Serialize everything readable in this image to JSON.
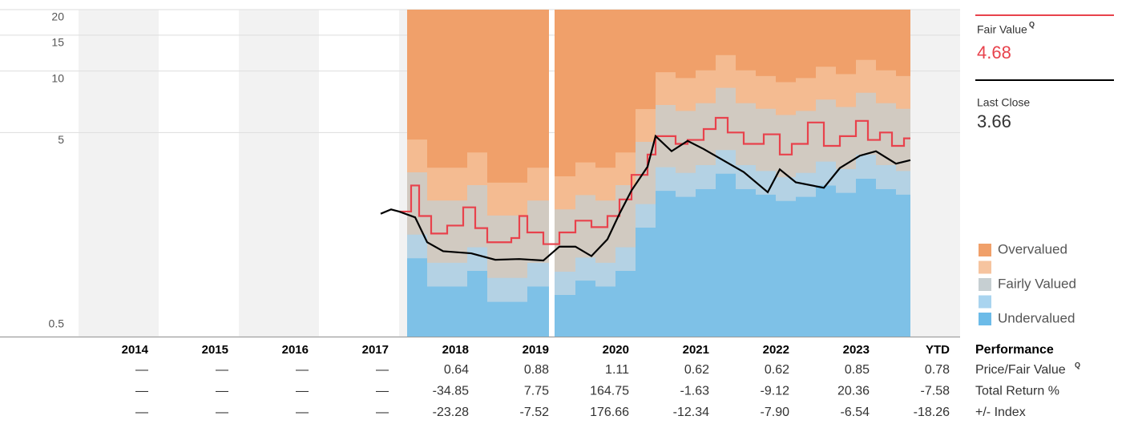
{
  "chart_data": {
    "type": "valuation",
    "scale": "log",
    "ylim": [
      0.5,
      20
    ],
    "yticks": [
      0.5,
      5,
      10,
      15,
      20
    ],
    "xlim": [
      2014,
      2025
    ],
    "bands": {
      "x": [
        2018.1,
        2018.35,
        2018.6,
        2018.85,
        2019.1,
        2019.35,
        2019.6,
        2019.87,
        2019.9,
        2019.94,
        2020.2,
        2020.45,
        2020.7,
        2020.95,
        2021.2,
        2021.45,
        2021.7,
        2021.95,
        2022.2,
        2022.45,
        2022.7,
        2022.95,
        2023.2,
        2023.45,
        2023.7,
        2023.95,
        2024.2,
        2024.38
      ],
      "series": [
        {
          "name": "Undervalued",
          "color": "#6cbbe8",
          "values": [
            1.21,
            0.88,
            0.88,
            1.05,
            0.74,
            0.74,
            0.88,
            0.74,
            null,
            0.8,
            0.94,
            0.88,
            1.05,
            1.71,
            2.59,
            2.42,
            2.64,
            3.14,
            2.64,
            2.48,
            2.31,
            2.42,
            2.75,
            2.53,
            2.97,
            2.64,
            2.48,
            2.57
          ]
        },
        {
          "name": null,
          "color": "#a9d4ef",
          "values": [
            1.58,
            1.15,
            1.15,
            1.37,
            0.97,
            0.97,
            1.15,
            0.97,
            null,
            1.04,
            1.22,
            1.15,
            1.37,
            2.23,
            3.38,
            3.17,
            3.46,
            4.1,
            3.46,
            3.24,
            3.02,
            3.17,
            3.6,
            3.31,
            3.89,
            3.46,
            3.24,
            3.37
          ]
        },
        {
          "name": "Fairly Valued",
          "color": "#c6cfd2",
          "values": [
            3.19,
            2.32,
            2.32,
            2.76,
            1.96,
            1.96,
            2.32,
            1.96,
            null,
            2.1,
            2.47,
            2.32,
            2.76,
            4.5,
            6.82,
            6.38,
            6.96,
            8.27,
            6.96,
            6.53,
            6.09,
            6.38,
            7.25,
            6.67,
            7.83,
            6.96,
            6.53,
            6.79
          ]
        },
        {
          "name": null,
          "color": "#f6c49f",
          "values": [
            4.62,
            3.36,
            3.36,
            3.99,
            2.84,
            2.84,
            3.36,
            2.84,
            null,
            3.05,
            3.57,
            3.36,
            3.99,
            6.51,
            9.87,
            9.24,
            10.08,
            11.97,
            10.08,
            9.45,
            8.82,
            9.24,
            10.5,
            9.66,
            11.34,
            10.08,
            9.45,
            9.83
          ]
        }
      ],
      "top": {
        "name": "Overvalued",
        "color": "#f0a06a"
      }
    },
    "price": {
      "color": "#000000",
      "x": [
        2017.77,
        2017.9,
        2018.0,
        2018.2,
        2018.35,
        2018.55,
        2018.9,
        2019.2,
        2019.5,
        2019.8,
        2020.0,
        2020.2,
        2020.4,
        2020.6,
        2020.75,
        2020.9,
        2021.1,
        2021.2,
        2021.4,
        2021.6,
        2021.8,
        2022.1,
        2022.3,
        2022.6,
        2022.75,
        2022.95,
        2023.3,
        2023.5,
        2023.75,
        2023.95,
        2024.2,
        2024.38
      ],
      "values": [
        2.0,
        2.1,
        2.05,
        1.92,
        1.45,
        1.31,
        1.28,
        1.19,
        1.2,
        1.18,
        1.38,
        1.38,
        1.24,
        1.5,
        2.0,
        2.6,
        3.4,
        4.8,
        4.05,
        4.55,
        4.15,
        3.55,
        3.2,
        2.55,
        3.3,
        2.85,
        2.68,
        3.35,
        3.85,
        4.05,
        3.52,
        3.66
      ]
    },
    "fair_value": {
      "color": "#e8424c",
      "x": [
        2018.0,
        2018.15,
        2018.25,
        2018.4,
        2018.6,
        2018.8,
        2018.95,
        2019.1,
        2019.4,
        2019.5,
        2019.6,
        2019.8,
        2020.0,
        2020.2,
        2020.4,
        2020.6,
        2020.75,
        2020.9,
        2021.1,
        2021.2,
        2021.45,
        2021.6,
        2021.8,
        2021.95,
        2022.1,
        2022.3,
        2022.55,
        2022.75,
        2022.9,
        2023.1,
        2023.3,
        2023.5,
        2023.7,
        2023.85,
        2024.0,
        2024.15,
        2024.3
      ],
      "values": [
        2.05,
        2.75,
        1.95,
        1.6,
        1.75,
        2.15,
        1.7,
        1.45,
        1.52,
        1.95,
        1.62,
        1.42,
        1.62,
        1.85,
        1.72,
        1.95,
        2.35,
        3.1,
        3.9,
        4.8,
        4.4,
        4.6,
        5.2,
        5.9,
        5.0,
        4.4,
        4.9,
        3.9,
        4.4,
        5.6,
        4.3,
        4.8,
        5.7,
        4.6,
        5.0,
        4.3,
        4.68
      ]
    }
  },
  "side": {
    "fair_value_label": "Fair Value",
    "fair_value": "4.68",
    "last_close_label": "Last Close",
    "last_close": "3.66"
  },
  "table": {
    "columns": [
      "2014",
      "2015",
      "2016",
      "2017",
      "2018",
      "2019",
      "2020",
      "2021",
      "2022",
      "2023",
      "YTD"
    ],
    "title": "Performance",
    "rows": [
      {
        "label": "Price/Fair Value",
        "values": [
          "—",
          "—",
          "—",
          "—",
          "0.64",
          "0.88",
          "1.11",
          "0.62",
          "0.62",
          "0.85",
          "0.78"
        ]
      },
      {
        "label": "Total Return %",
        "values": [
          "—",
          "—",
          "—",
          "—",
          "-34.85",
          "7.75",
          "164.75",
          "-1.63",
          "-9.12",
          "20.36",
          "-7.58"
        ]
      },
      {
        "label": "+/- Index",
        "values": [
          "—",
          "—",
          "—",
          "—",
          "-23.28",
          "-7.52",
          "176.66",
          "-12.34",
          "-7.90",
          "-6.54",
          "-18.26"
        ]
      }
    ]
  }
}
